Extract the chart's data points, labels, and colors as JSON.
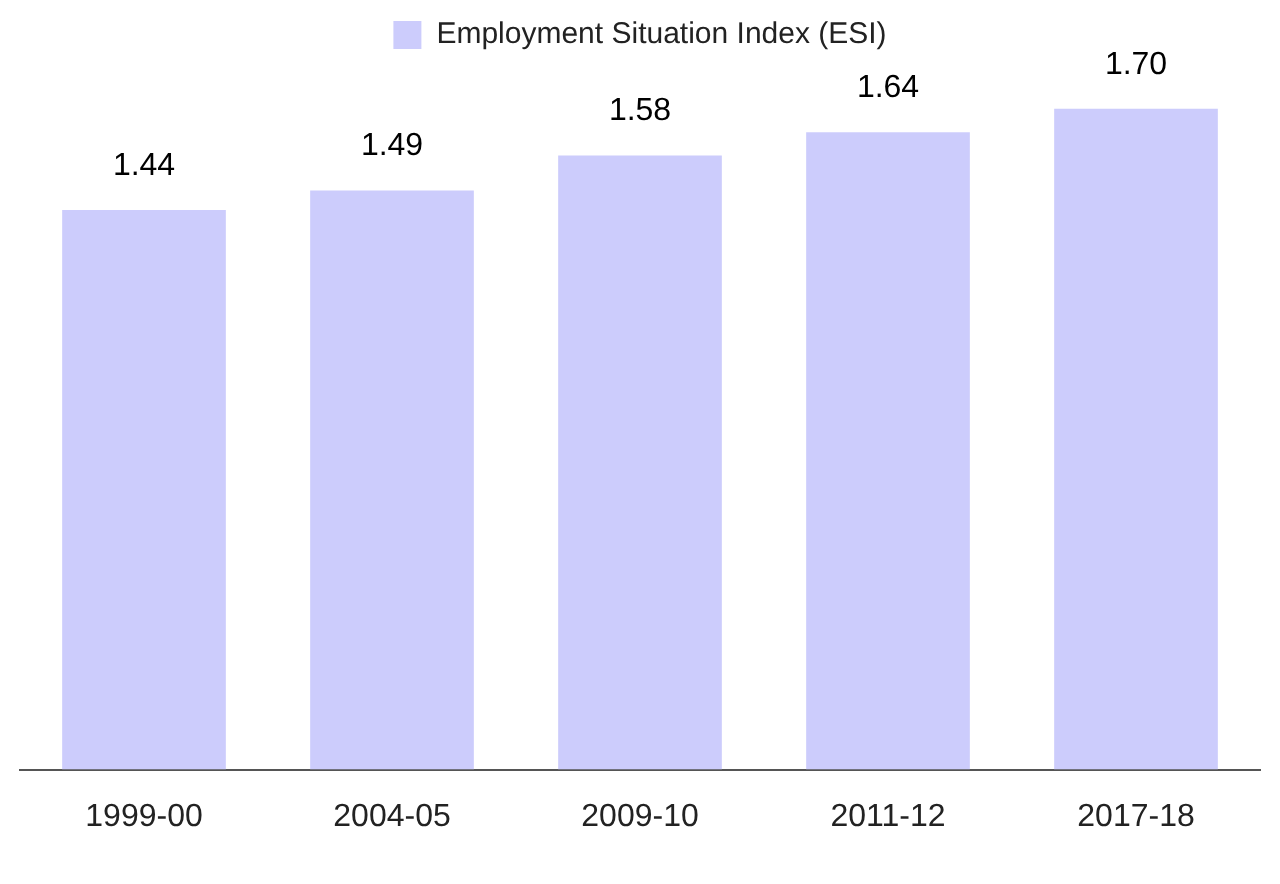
{
  "chart_data": {
    "type": "bar",
    "categories": [
      "1999-00",
      "2004-05",
      "2009-10",
      "2011-12",
      "2017-18"
    ],
    "series": [
      {
        "name": "Employment Situation Index (ESI)",
        "color": "#ccccfc",
        "values": [
          1.44,
          1.49,
          1.58,
          1.64,
          1.7
        ],
        "value_labels": [
          "1.44",
          "1.49",
          "1.58",
          "1.64",
          "1.70"
        ]
      }
    ],
    "tick_labels": "x",
    "legend": "top",
    "grid": false
  }
}
